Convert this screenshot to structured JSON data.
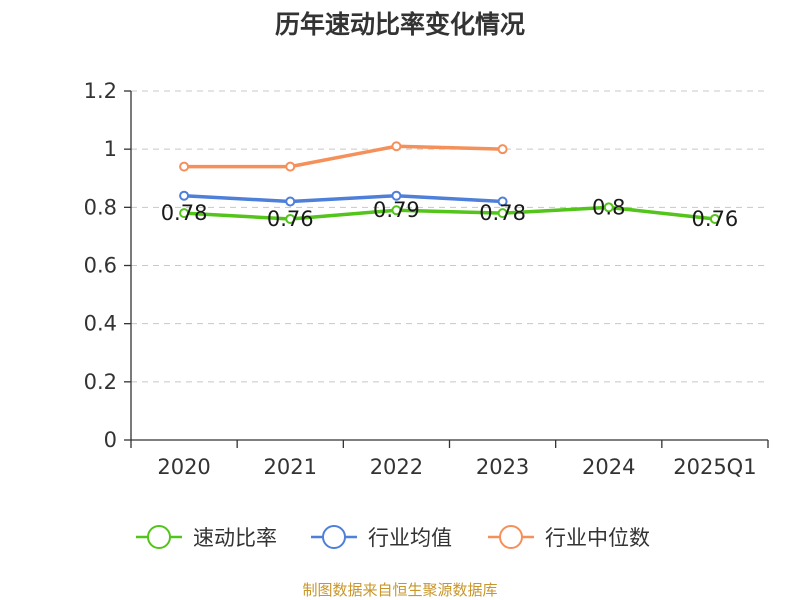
{
  "chart_data": {
    "type": "line",
    "title": "历年速动比率变化情况",
    "categories": [
      "2020",
      "2021",
      "2022",
      "2023",
      "2024",
      "2025Q1"
    ],
    "ylim": [
      0,
      1.2
    ],
    "yticks": [
      "0",
      "0.2",
      "0.4",
      "0.6",
      "0.8",
      "1",
      "1.2"
    ],
    "grid": true,
    "legend_position": "bottom",
    "series": [
      {
        "name": "速动比率",
        "color": "#52c41a",
        "values": [
          0.78,
          0.76,
          0.79,
          0.78,
          0.8,
          0.76
        ],
        "labels": [
          "0.78",
          "0.76",
          "0.79",
          "0.78",
          "0.8",
          "0.76"
        ]
      },
      {
        "name": "行业均值",
        "color": "#4e7fd9",
        "values": [
          0.84,
          0.82,
          0.84,
          0.82,
          null,
          null
        ]
      },
      {
        "name": "行业中位数",
        "color": "#f5905a",
        "values": [
          0.94,
          0.94,
          1.01,
          1.0,
          null,
          null
        ]
      }
    ],
    "source": "制图数据来自恒生聚源数据库"
  }
}
